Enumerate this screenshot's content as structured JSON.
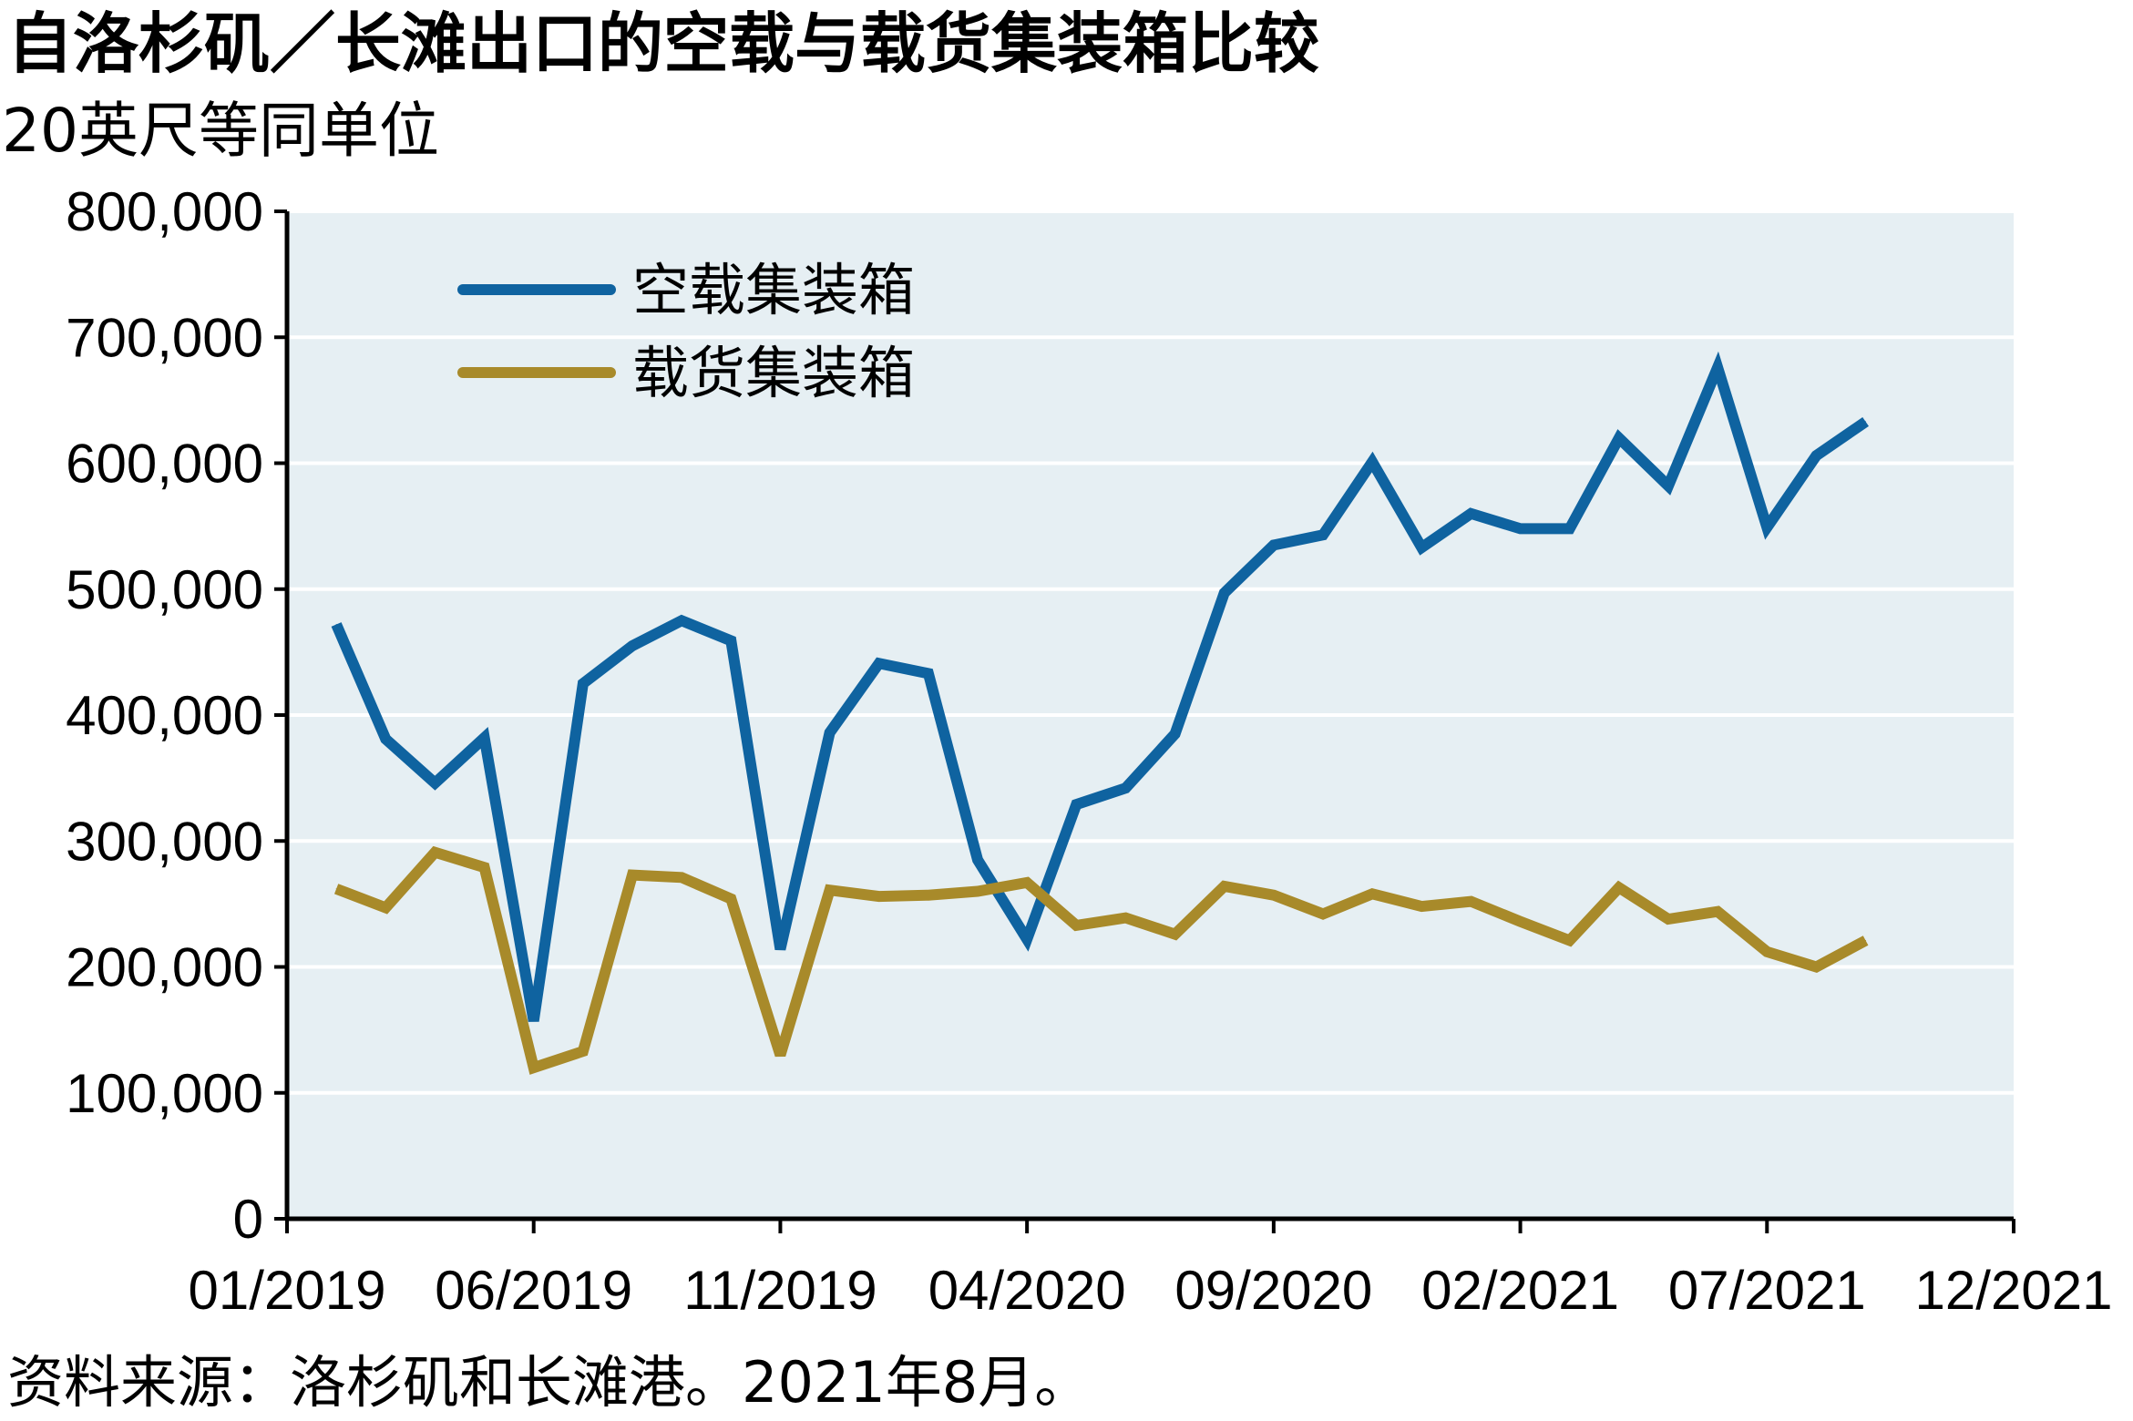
{
  "chart_data": {
    "type": "line",
    "title": "自洛杉矶／长滩出口的空载与载货集装箱比较",
    "subtitle": "20英尺等同单位",
    "source": "资料来源：洛杉矶和长滩港。2021年8月。",
    "ylim": [
      0,
      800000
    ],
    "y_ticks": [
      "0",
      "100,000",
      "200,000",
      "300,000",
      "400,000",
      "500,000",
      "600,000",
      "700,000",
      "800,000"
    ],
    "x_ticks": [
      "01/2019",
      "06/2019",
      "11/2019",
      "04/2020",
      "09/2020",
      "02/2021",
      "07/2021",
      "12/2021"
    ],
    "x_range": [
      "2019-01",
      "2021-12"
    ],
    "x": [
      "2019-02",
      "2019-03",
      "2019-04",
      "2019-05",
      "2019-06",
      "2019-07",
      "2019-08",
      "2019-09",
      "2019-10",
      "2019-11",
      "2019-12",
      "2020-01",
      "2020-02",
      "2020-03",
      "2020-04",
      "2020-05",
      "2020-06",
      "2020-07",
      "2020-08",
      "2020-09",
      "2020-10",
      "2020-11",
      "2020-12",
      "2021-01",
      "2021-02",
      "2021-03",
      "2021-04",
      "2021-05",
      "2021-06",
      "2021-07",
      "2021-08",
      "2021-09"
    ],
    "series": [
      {
        "name": "空载集装箱",
        "color": "#0f63a0",
        "values": [
          472000,
          381000,
          346000,
          382000,
          157000,
          425000,
          455000,
          475000,
          459000,
          214000,
          386000,
          441000,
          433000,
          285000,
          222000,
          329000,
          342000,
          385000,
          497000,
          535000,
          543000,
          601000,
          533000,
          560000,
          548000,
          548000,
          620000,
          582000,
          676000,
          549000,
          606000,
          633000
        ]
      },
      {
        "name": "载货集装箱",
        "color": "#a88a2a",
        "values": [
          262000,
          247000,
          291000,
          279000,
          120000,
          133000,
          273000,
          271000,
          254000,
          130000,
          261000,
          256000,
          257000,
          260000,
          267000,
          233000,
          239000,
          226000,
          264000,
          257000,
          242000,
          258000,
          248000,
          252000,
          236000,
          221000,
          263000,
          238000,
          244000,
          212000,
          200000,
          221000
        ]
      }
    ],
    "colors": {
      "plot_background": "#e6eff3",
      "grid": "#ffffff",
      "axis": "#000000"
    },
    "grid": true,
    "legend_position": "top-left"
  }
}
